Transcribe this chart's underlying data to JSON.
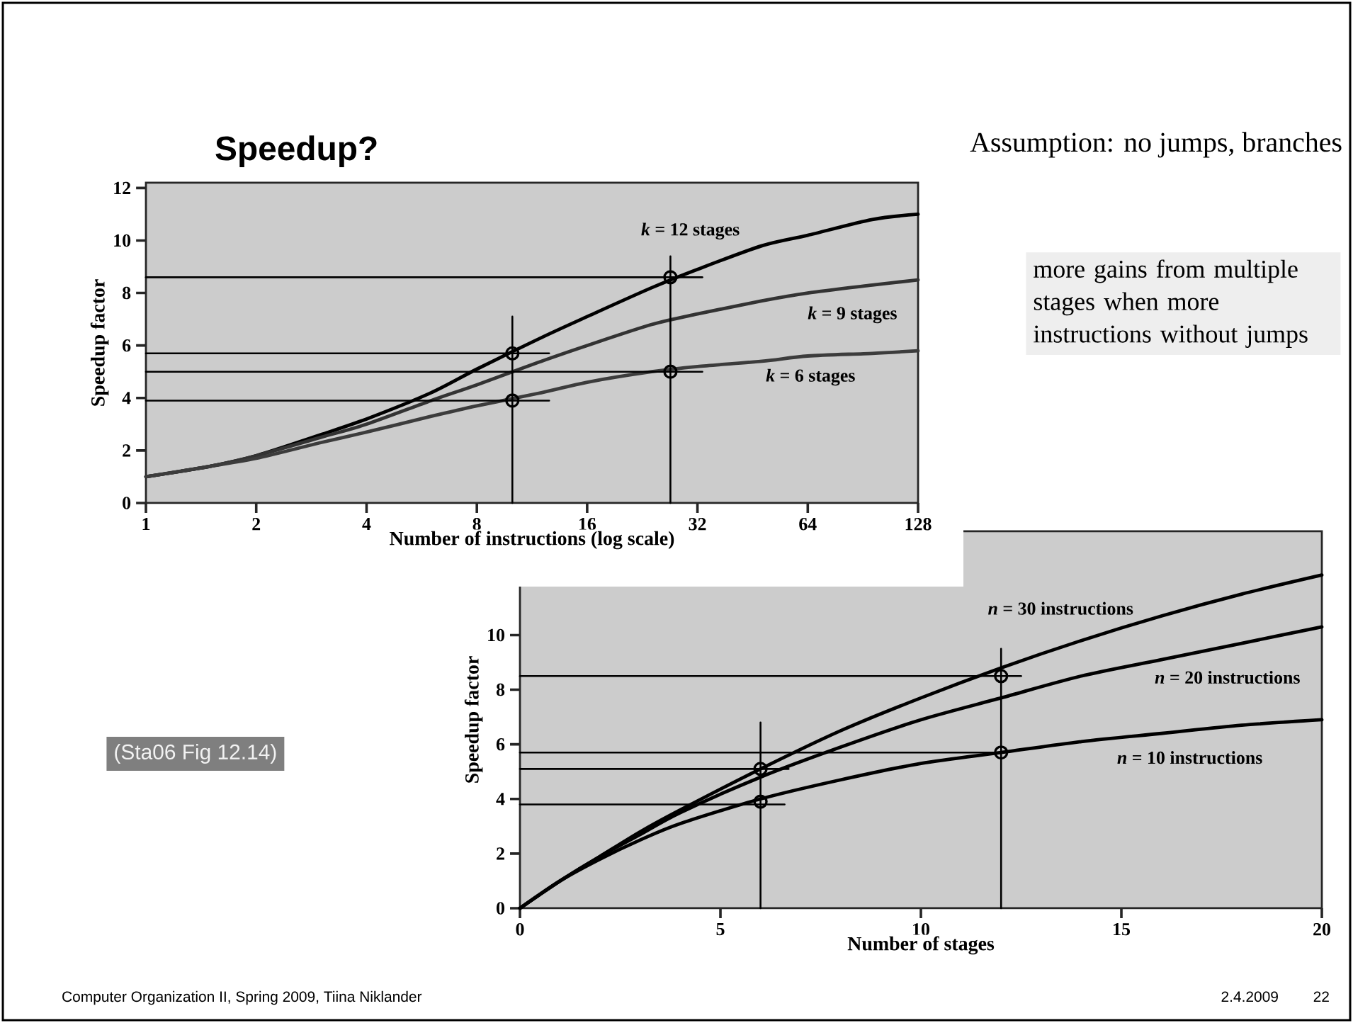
{
  "chart_data": [
    {
      "type": "line",
      "title": "Speedup?",
      "xlabel": "Number of instructions (log scale)",
      "ylabel": "Speedup factor",
      "log": "x",
      "xlim": [
        1,
        128
      ],
      "ylim": [
        0,
        12.2
      ],
      "xticks": [
        1,
        2,
        4,
        8,
        16,
        32,
        64,
        128
      ],
      "yticks": [
        0,
        2,
        4,
        6,
        8,
        10,
        12
      ],
      "series": [
        {
          "name": "*k* = 12 stages",
          "color": "#000000",
          "x": [
            1,
            1.5,
            2,
            3,
            4,
            6,
            8,
            12,
            16,
            24,
            32,
            48,
            64,
            96,
            128
          ],
          "values": [
            1.0,
            1.4,
            1.8,
            2.6,
            3.2,
            4.2,
            5.1,
            6.3,
            7.1,
            8.2,
            8.9,
            9.8,
            10.2,
            10.8,
            11.0
          ]
        },
        {
          "name": "*k* = 9 stages",
          "color": "#333333",
          "x": [
            1,
            1.5,
            2,
            3,
            4,
            6,
            8,
            12,
            16,
            24,
            32,
            48,
            64,
            96,
            128
          ],
          "values": [
            1.0,
            1.4,
            1.8,
            2.5,
            3.0,
            3.9,
            4.5,
            5.4,
            6.0,
            6.8,
            7.2,
            7.7,
            8.0,
            8.3,
            8.5
          ]
        },
        {
          "name": "*k* = 6 stages",
          "color": "#3c3c3c",
          "x": [
            1,
            1.5,
            2,
            3,
            4,
            6,
            8,
            12,
            16,
            24,
            32,
            48,
            64,
            96,
            128
          ],
          "values": [
            1.0,
            1.4,
            1.7,
            2.3,
            2.7,
            3.3,
            3.7,
            4.2,
            4.6,
            5.0,
            5.2,
            5.4,
            5.6,
            5.7,
            5.8
          ]
        },
        {
          "color": "#000000",
          "x": [
            1,
            33
          ],
          "values": [
            8.6,
            8.6
          ]
        },
        {
          "color": "#000000",
          "x": [
            1,
            12.6
          ],
          "values": [
            5.7,
            5.7
          ]
        },
        {
          "color": "#000000",
          "x": [
            1,
            33
          ],
          "values": [
            5.0,
            5.0
          ]
        },
        {
          "color": "#000000",
          "x": [
            1,
            12.6
          ],
          "values": [
            3.9,
            3.9
          ]
        },
        {
          "color": "#000000",
          "x": [
            10,
            10
          ],
          "values": [
            0,
            7.1
          ]
        },
        {
          "color": "#000000",
          "x": [
            27,
            27
          ],
          "values": [
            0,
            9.4
          ]
        },
        {
          "type": "scatter",
          "marker": "circle",
          "color": "#000000",
          "x": [
            10,
            10,
            27,
            27
          ],
          "values": [
            5.7,
            3.9,
            8.6,
            5.0
          ]
        }
      ],
      "annotations": [
        "Assumption: no jumps, branches",
        "more gains from multiple stages when more instructions without jumps",
        "(Sta06 Fig 12.14)",
        "Computer Organization II, Spring 2009, Tiina Niklander",
        "2.4.2009",
        "22"
      ]
    },
    {
      "type": "line",
      "xlabel": "Number of stages",
      "ylabel": "Speedup factor",
      "xlim": [
        0,
        20
      ],
      "ylim": [
        0,
        13.8
      ],
      "xticks": [
        0,
        5,
        10,
        15,
        20
      ],
      "yticks": [
        0,
        2,
        4,
        6,
        8,
        10
      ],
      "series": [
        {
          "name": "*n* = 30 instructions",
          "color": "#000000",
          "x": [
            0,
            1,
            2,
            3,
            4,
            6,
            8,
            10,
            12,
            14,
            16,
            18,
            20
          ],
          "values": [
            0,
            1.0,
            1.9,
            2.8,
            3.6,
            5.1,
            6.5,
            7.7,
            8.8,
            9.8,
            10.7,
            11.5,
            12.2
          ]
        },
        {
          "name": "*n* = 20 instructions",
          "color": "#000000",
          "x": [
            0,
            1,
            2,
            3,
            4,
            6,
            8,
            10,
            12,
            14,
            16,
            18,
            20
          ],
          "values": [
            0,
            1.0,
            1.9,
            2.7,
            3.5,
            4.8,
            5.9,
            6.9,
            7.7,
            8.5,
            9.1,
            9.7,
            10.3
          ]
        },
        {
          "name": "*n* = 10 instructions",
          "color": "#000000",
          "x": [
            0,
            1,
            2,
            3,
            4,
            6,
            8,
            10,
            12,
            14,
            16,
            18,
            20
          ],
          "values": [
            0,
            1.0,
            1.8,
            2.5,
            3.1,
            4.0,
            4.7,
            5.3,
            5.7,
            6.1,
            6.4,
            6.7,
            6.9
          ]
        },
        {
          "color": "#000000",
          "x": [
            0,
            12.5
          ],
          "values": [
            8.5,
            8.5
          ]
        },
        {
          "color": "#000000",
          "x": [
            0,
            12
          ],
          "values": [
            5.7,
            5.7
          ]
        },
        {
          "color": "#000000",
          "x": [
            0,
            6.7
          ],
          "values": [
            5.1,
            5.1
          ]
        },
        {
          "color": "#000000",
          "x": [
            0,
            6.6
          ],
          "values": [
            3.8,
            3.8
          ]
        },
        {
          "color": "#000000",
          "x": [
            6,
            6
          ],
          "values": [
            0,
            6.8
          ]
        },
        {
          "color": "#000000",
          "x": [
            12,
            12
          ],
          "values": [
            0,
            9.5
          ]
        },
        {
          "type": "scatter",
          "marker": "circle",
          "color": "#000000",
          "x": [
            6,
            6,
            12,
            12
          ],
          "values": [
            5.1,
            3.9,
            8.5,
            5.7
          ]
        }
      ]
    }
  ]
}
